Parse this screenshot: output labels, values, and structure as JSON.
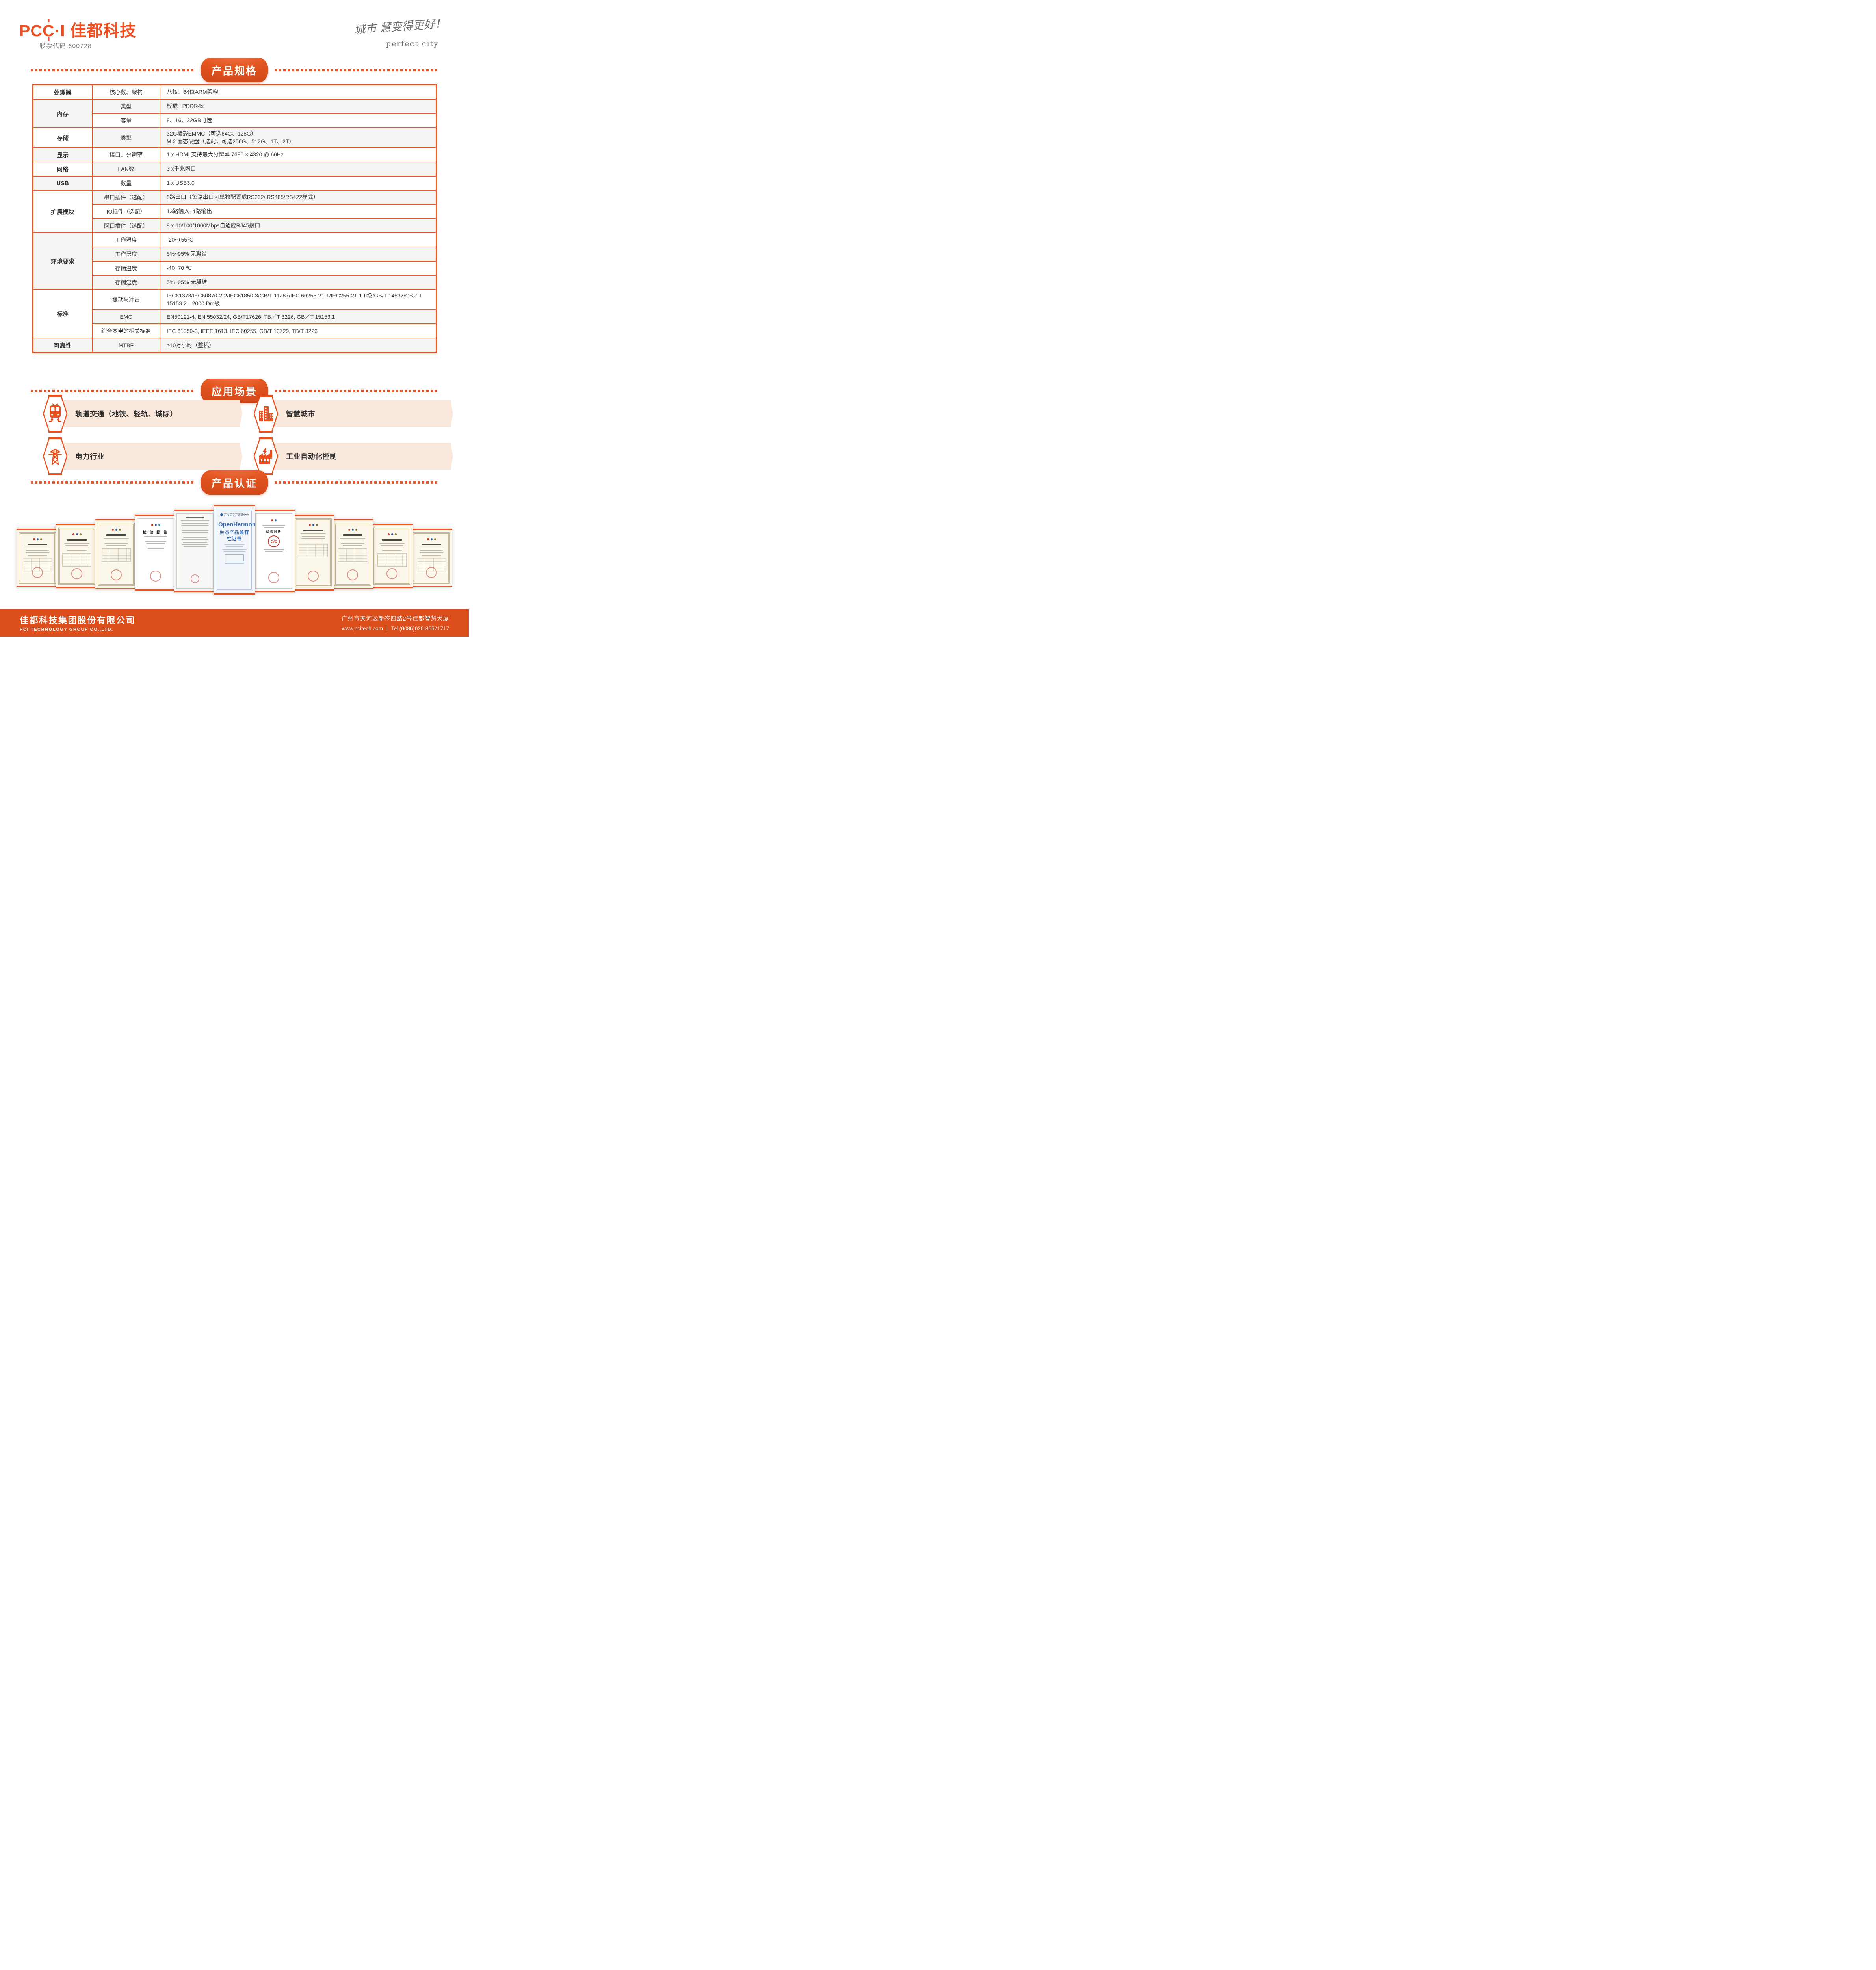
{
  "colors": {
    "accent": "#E8501E",
    "logo": "#F04E23",
    "table_border": "#E2582C",
    "row_shade": "#F4F4F4",
    "scenario_banner": "#FBE8DC",
    "footer": "#DC4E1C",
    "cert_blue": "#2F62AE"
  },
  "header": {
    "logo_pc": "PC",
    "logo_dot_i": "·I",
    "logo_cn": "佳都科技",
    "stock": "股票代码:600728",
    "slogan_cn": "城市 慧变得更好！",
    "slogan_en": "perfect city"
  },
  "sections": {
    "spec": "产品规格",
    "scenarios": "应用场景",
    "cert": "产品认证"
  },
  "spec_table": {
    "groups": [
      {
        "name": "处理器",
        "shaded": false,
        "rows": [
          {
            "label": "核心数、架构",
            "value": "八核、64位ARM架构",
            "shaded": false
          }
        ]
      },
      {
        "name": "内存",
        "shaded": true,
        "rows": [
          {
            "label": "类型",
            "value": "板载 LPDDR4x",
            "shaded": true
          },
          {
            "label": "容量",
            "value": "8、16、32GB可选",
            "shaded": false
          }
        ]
      },
      {
        "name": "存储",
        "shaded": false,
        "rows": [
          {
            "label": "类型",
            "value": [
              "32G板载EMMC（可选64G、128G）",
              "M.2 固态硬盘（选配，可选256G、512G、1T、2T）"
            ],
            "shaded": true
          }
        ]
      },
      {
        "name": "显示",
        "shaded": true,
        "rows": [
          {
            "label": "接口、分辨率",
            "value": "1 x HDMI 支持最大分辨率 7680 × 4320 @ 60Hz",
            "shaded": false
          }
        ]
      },
      {
        "name": "网络",
        "shaded": false,
        "rows": [
          {
            "label": "LAN数",
            "value": "3 x千兆网口",
            "shaded": true
          }
        ]
      },
      {
        "name": "USB",
        "shaded": true,
        "rows": [
          {
            "label": "数量",
            "value": "1 x USB3.0",
            "shaded": false
          }
        ]
      },
      {
        "name": "扩展模块",
        "shaded": false,
        "rows": [
          {
            "label": "串口插件（选配）",
            "value": "8路串口（每路串口可单独配置成RS232/ RS485/RS422模式）",
            "shaded": true
          },
          {
            "label": "IO插件（选配）",
            "value": "13路输入, 4路输出",
            "shaded": false
          },
          {
            "label": "网口插件（选配）",
            "value": "8 x 10/100/1000Mbps自适应RJ45接口",
            "shaded": true
          }
        ]
      },
      {
        "name": "环境要求",
        "shaded": true,
        "rows": [
          {
            "label": "工作温度",
            "value": "-20~+55℃",
            "shaded": false
          },
          {
            "label": "工作湿度",
            "value": "5%~95% 无凝结",
            "shaded": true
          },
          {
            "label": "存储温度",
            "value": "-40~70 ℃",
            "shaded": false
          },
          {
            "label": "存储湿度",
            "value": "5%~95% 无凝结",
            "shaded": true
          }
        ]
      },
      {
        "name": "标准",
        "shaded": false,
        "rows": [
          {
            "label": "振动与冲击",
            "value": "IEC61373/IEC60870-2-2/IEC61850-3/GB/T 11287/IEC 60255-21-1/IEC255-21-1-II级/GB/T 14537/GB／T 15153.2—2000 Dm级",
            "shaded": false
          },
          {
            "label": "EMC",
            "value": "EN50121-4, EN 55032/24, GB/T17626, TB／T 3226, GB／T 15153.1",
            "shaded": true
          },
          {
            "label": "综合变电站相关标准",
            "value": "IEC 61850-3, IEEE 1613, IEC 60255, GB/T 13729, TB/T 3226",
            "shaded": false
          }
        ]
      },
      {
        "name": "可靠性",
        "shaded": true,
        "rows": [
          {
            "label": "MTBF",
            "value": "≥10万小时（整机）",
            "shaded": true
          }
        ]
      }
    ]
  },
  "scenarios": {
    "items": [
      {
        "label": "轨道交通（地铁、轻轨、城际）",
        "icon": "train-icon"
      },
      {
        "label": "智慧城市",
        "icon": "city-icon"
      },
      {
        "label": "电力行业",
        "icon": "power-tower-icon"
      },
      {
        "label": "工业自动化控制",
        "icon": "factory-icon"
      }
    ]
  },
  "certificates": {
    "types": [
      "cream",
      "cream",
      "cream",
      "report",
      "dense",
      "blue",
      "cvc",
      "cream",
      "cream",
      "cream",
      "cream"
    ],
    "center": {
      "org": "开放原子开源基金会",
      "title": "OpenHarmony",
      "subtitle": "生态产品兼容性证书"
    },
    "report_title": "检 验 报 告",
    "test_report_title": "试验报告",
    "cvc_label": "CVC"
  },
  "footer": {
    "company_cn": "佳都科技集团股份有限公司",
    "company_en": "PCI TECHNOLOGY GROUP CO.,LTD.",
    "address": "广州市天河区新岑四路2号佳都智慧大厦",
    "website": "www.pcitech.com",
    "tel": "Tel (0086)020-85521717"
  }
}
